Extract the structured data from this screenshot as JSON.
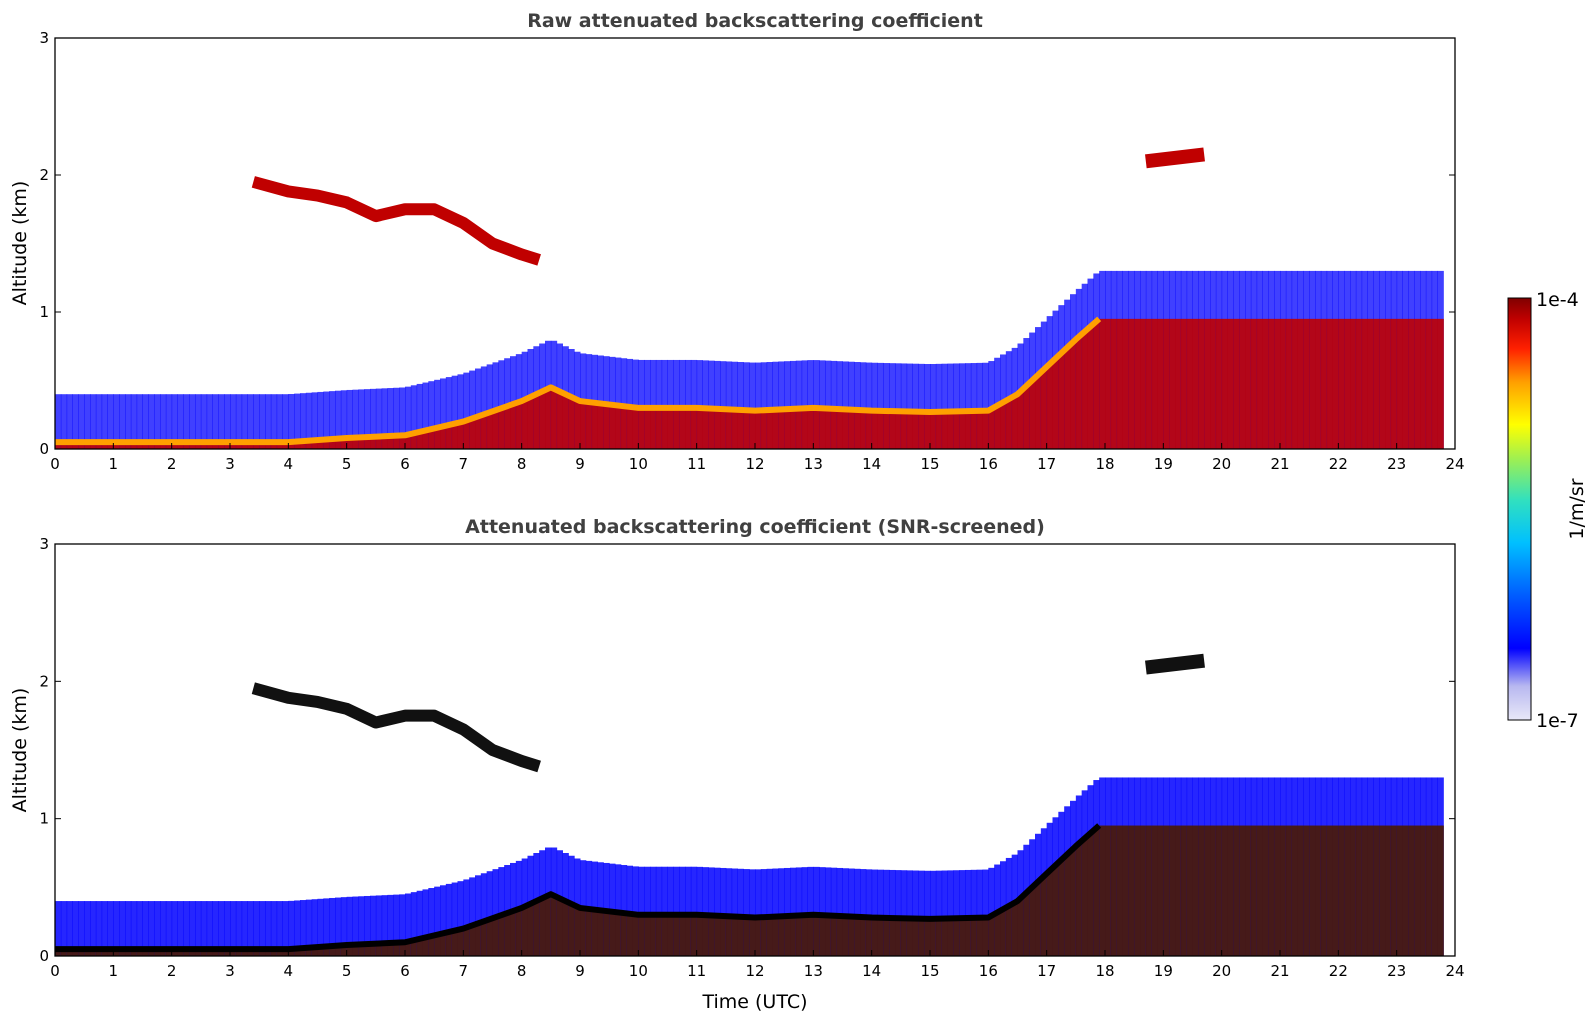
{
  "colors": {
    "colormap": [
      "#e8e8f8",
      "#b8b8f0",
      "#0000ff",
      "#0060ff",
      "#00c0ff",
      "#30e0c0",
      "#a0f050",
      "#ffff00",
      "#ffa000",
      "#ff2000",
      "#c00000",
      "#800000"
    ],
    "axis": "#000000",
    "title": "#404040"
  },
  "chart_data": [
    {
      "type": "heatmap",
      "title": "Raw attenuated backscattering coefficient",
      "xlabel": "",
      "ylabel": "Altitude (km)",
      "xlim": [
        0,
        24
      ],
      "ylim": [
        0,
        3
      ],
      "x_ticks": [
        "0",
        "1",
        "2",
        "3",
        "4",
        "5",
        "6",
        "7",
        "8",
        "9",
        "10",
        "11",
        "12",
        "13",
        "14",
        "15",
        "16",
        "17",
        "18",
        "19",
        "20",
        "21",
        "22",
        "23",
        "24"
      ],
      "y_ticks": [
        "0",
        "1",
        "2",
        "3"
      ],
      "boundary_layer_top_km": {
        "x": [
          0,
          1,
          2,
          3,
          4,
          5,
          6,
          7,
          8,
          8.5,
          9,
          10,
          11,
          12,
          13,
          14,
          15,
          16,
          16.5,
          17,
          17.5,
          17.9
        ],
        "y": [
          0.05,
          0.05,
          0.05,
          0.05,
          0.05,
          0.08,
          0.1,
          0.2,
          0.35,
          0.45,
          0.35,
          0.3,
          0.3,
          0.28,
          0.3,
          0.28,
          0.27,
          0.28,
          0.4,
          0.6,
          0.8,
          0.95
        ]
      },
      "cloud_layer_km": {
        "x": [
          3.4,
          4,
          4.5,
          5,
          5.5,
          6,
          6.5,
          7,
          7.5,
          8,
          8.3
        ],
        "y": [
          1.95,
          1.88,
          1.85,
          1.8,
          1.7,
          1.75,
          1.75,
          1.65,
          1.5,
          1.42,
          1.38
        ]
      },
      "upper_cloud_km": {
        "x": [
          18.7,
          19.7
        ],
        "y": [
          2.1,
          2.15
        ]
      }
    },
    {
      "type": "heatmap",
      "title": "Attenuated backscattering coefficient (SNR-screened)",
      "xlabel": "Time (UTC)",
      "ylabel": "Altitude (km)",
      "xlim": [
        0,
        24
      ],
      "ylim": [
        0,
        3
      ],
      "x_ticks": [
        "0",
        "1",
        "2",
        "3",
        "4",
        "5",
        "6",
        "7",
        "8",
        "9",
        "10",
        "11",
        "12",
        "13",
        "14",
        "15",
        "16",
        "17",
        "18",
        "19",
        "20",
        "21",
        "22",
        "23",
        "24"
      ],
      "y_ticks": [
        "0",
        "1",
        "2",
        "3"
      ],
      "boundary_layer_top_km": {
        "x": [
          0,
          1,
          2,
          3,
          4,
          5,
          6,
          7,
          8,
          8.5,
          9,
          10,
          11,
          12,
          13,
          14,
          15,
          16,
          16.5,
          17,
          17.5,
          17.9
        ],
        "y": [
          0.05,
          0.05,
          0.05,
          0.05,
          0.05,
          0.08,
          0.1,
          0.2,
          0.35,
          0.45,
          0.35,
          0.3,
          0.3,
          0.28,
          0.3,
          0.28,
          0.27,
          0.28,
          0.4,
          0.6,
          0.8,
          0.95
        ]
      },
      "cloud_layer_km": {
        "x": [
          3.4,
          4,
          4.5,
          5,
          5.5,
          6,
          6.5,
          7,
          7.5,
          8,
          8.3
        ],
        "y": [
          1.95,
          1.88,
          1.85,
          1.8,
          1.7,
          1.75,
          1.75,
          1.65,
          1.5,
          1.42,
          1.38
        ]
      },
      "upper_cloud_km": {
        "x": [
          18.7,
          19.7
        ],
        "y": [
          2.1,
          2.15
        ]
      }
    }
  ],
  "colorbar": {
    "max_label": "1e-4",
    "min_label": "1e-7",
    "unit_label": "1/m/sr",
    "scale": "log"
  }
}
